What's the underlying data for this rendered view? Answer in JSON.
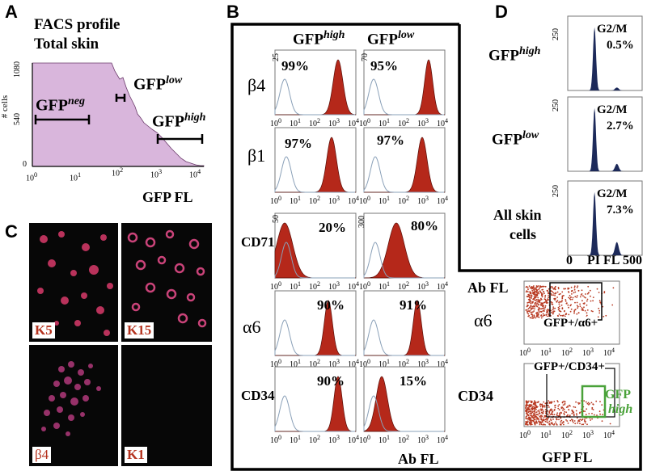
{
  "panels": {
    "A": "A",
    "B": "B",
    "C": "C",
    "D": "D"
  },
  "colors": {
    "hist_fill": "#b5281a",
    "hist_outline": "#8aa0b8",
    "facs_fill": "#d9b6dc",
    "dot": "#b83a22",
    "dna_fill": "#1d2a5a",
    "green_gate": "#4aa23a",
    "micro_label": "#b5331f"
  },
  "panel_a": {
    "title_1": "FACS profile",
    "title_2": "Total skin",
    "ylabel": "# cells",
    "yticks": [
      "1080",
      "540",
      "0"
    ],
    "xticks": [
      {
        "b": "10",
        "e": "0"
      },
      {
        "b": "10",
        "e": "1"
      },
      {
        "b": "10",
        "e": "2"
      },
      {
        "b": "10",
        "e": "3"
      },
      {
        "b": "10",
        "e": "4"
      }
    ],
    "xlabel": "GFP FL",
    "gate_neg": {
      "base": "GFP",
      "sup": "neg"
    },
    "gate_low": {
      "base": "GFP",
      "sup": "low"
    },
    "gate_high": {
      "base": "GFP",
      "sup": "high"
    }
  },
  "panel_b": {
    "col_high": {
      "base": "GFP",
      "sup": "high"
    },
    "col_low": {
      "base": "GFP",
      "sup": "low"
    },
    "xlabel": "Ab FL",
    "rows": [
      {
        "label": "β4",
        "ymax_high": "25",
        "ymax_low": "70",
        "pct_high": "99%",
        "pct_low": "95%"
      },
      {
        "label": "β1",
        "ymax_high": "",
        "ymax_low": "",
        "pct_high": "97%",
        "pct_low": "97%"
      },
      {
        "label": "CD71",
        "ymax_high": "50",
        "ymax_low": "300",
        "pct_high": "20%",
        "pct_low": "80%"
      },
      {
        "label": "α6",
        "ymax_high": "",
        "ymax_low": "",
        "pct_high": "90%",
        "pct_low": "91%"
      },
      {
        "label": "CD34",
        "ymax_high": "",
        "ymax_low": "",
        "pct_high": "90%",
        "pct_low": "15%"
      }
    ],
    "xticks_common": [
      "10",
      "10",
      "10",
      "10",
      "10"
    ]
  },
  "panel_b_dot": {
    "ylabel": "Ab FL",
    "row1_label": "α6",
    "row2_label": "CD34",
    "gate1": "GFP+/α6+",
    "gate2": "GFP+/CD34+",
    "gate3_l1": "GFP",
    "gate3_l2": "high",
    "xlabel": "GFP FL"
  },
  "panel_c": {
    "k5": "K5",
    "k15": "K15",
    "b4": "β4",
    "k1": "K1"
  },
  "panel_d": {
    "rows": [
      {
        "label_base": "GFP",
        "label_sup": "high",
        "ytick": "250",
        "phase": "G2/M",
        "value": "0.5%"
      },
      {
        "label_base": "GFP",
        "label_sup": "low",
        "ytick": "250",
        "phase": "G2/M",
        "value": "2.7%"
      },
      {
        "label_l1": "All skin",
        "label_l2": "cells",
        "ytick": "250",
        "phase": "G2/M",
        "value": "7.3%"
      }
    ],
    "xticks": [
      "0",
      "PI FL",
      "500"
    ]
  }
}
